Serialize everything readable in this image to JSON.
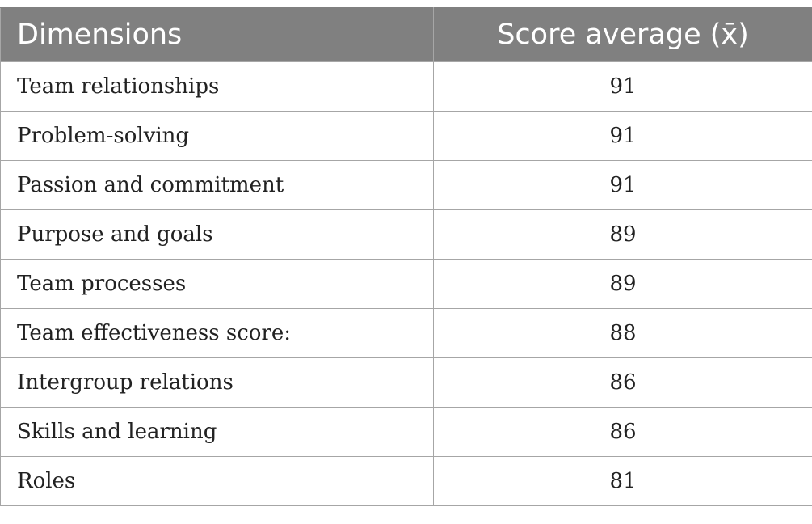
{
  "table": {
    "headers": [
      "Dimensions",
      "Score average (x̄)"
    ],
    "rows": [
      {
        "dimension": "Team relationships",
        "score": "91"
      },
      {
        "dimension": "Problem-solving",
        "score": "91"
      },
      {
        "dimension": "Passion and commitment",
        "score": "91"
      },
      {
        "dimension": "Purpose and goals",
        "score": "89"
      },
      {
        "dimension": "Team processes",
        "score": "89"
      },
      {
        "dimension": "Team effectiveness score:",
        "score": "88"
      },
      {
        "dimension": "Intergroup relations",
        "score": "86"
      },
      {
        "dimension": "Skills and learning",
        "score": "86"
      },
      {
        "dimension": "Roles",
        "score": "81"
      }
    ]
  },
  "colors": {
    "header_bg": "#808080",
    "header_text": "#ffffff",
    "border": "#a6a6a6",
    "cell_text": "#222222"
  }
}
